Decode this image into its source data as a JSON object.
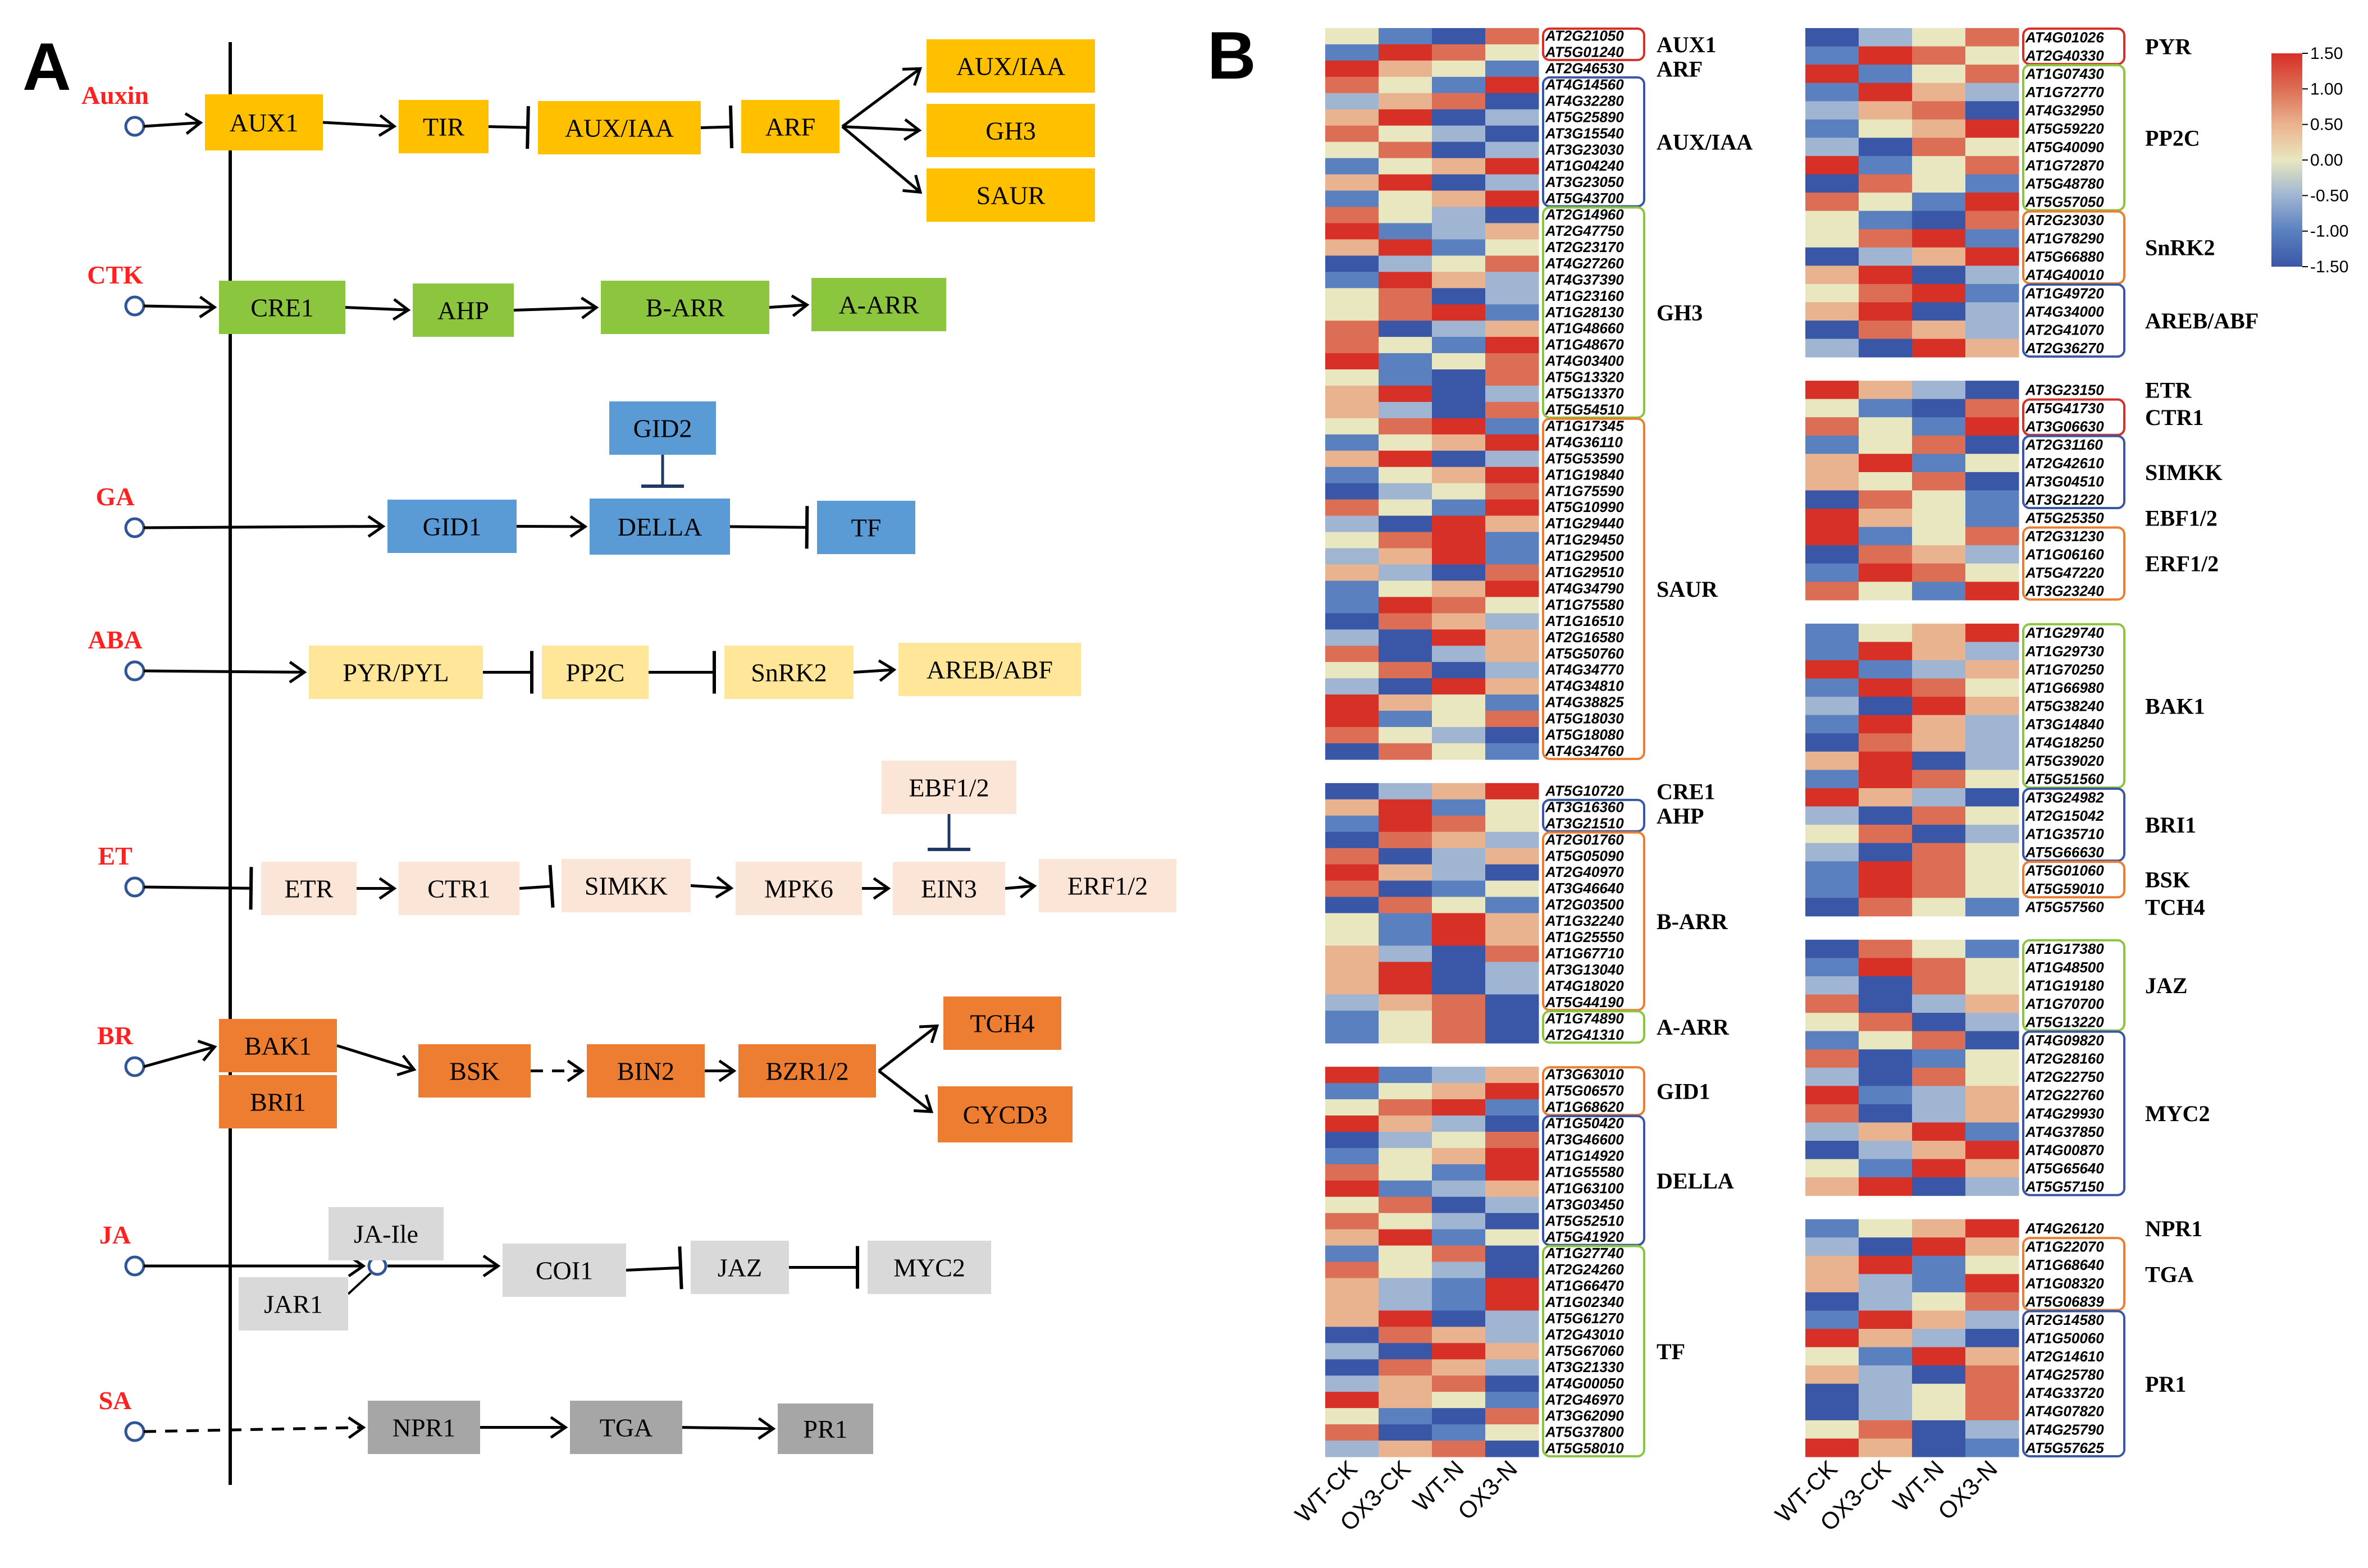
{
  "panel_a": {
    "label": "A",
    "pathways": [
      {
        "id": "auxin",
        "signal": "Auxin",
        "color": "#FFC000",
        "nodes": [
          {
            "id": "AUX1",
            "label": "AUX1"
          },
          {
            "id": "TIR",
            "label": "TIR"
          },
          {
            "id": "AUXIAA1",
            "label": "AUX/IAA"
          },
          {
            "id": "ARF",
            "label": "ARF"
          },
          {
            "id": "AUXIAA2",
            "label": "AUX/IAA"
          },
          {
            "id": "GH3",
            "label": "GH3"
          },
          {
            "id": "SAUR",
            "label": "SAUR"
          }
        ],
        "links": [
          {
            "from": "signal",
            "to": "AUX1",
            "type": "arrow"
          },
          {
            "from": "AUX1",
            "to": "TIR",
            "type": "arrow"
          },
          {
            "from": "TIR",
            "to": "AUXIAA1",
            "type": "inhibit"
          },
          {
            "from": "AUXIAA1",
            "to": "ARF",
            "type": "inhibit"
          },
          {
            "from": "ARF",
            "to": "AUXIAA2",
            "type": "arrow"
          },
          {
            "from": "ARF",
            "to": "GH3",
            "type": "arrow"
          },
          {
            "from": "ARF",
            "to": "SAUR",
            "type": "arrow"
          }
        ]
      },
      {
        "id": "ctk",
        "signal": "CTK",
        "color": "#8CC63F",
        "nodes": [
          {
            "id": "CRE1",
            "label": "CRE1"
          },
          {
            "id": "AHP",
            "label": "AHP"
          },
          {
            "id": "BARR",
            "label": "B-ARR"
          },
          {
            "id": "AARR",
            "label": "A-ARR"
          }
        ],
        "links": [
          {
            "from": "signal",
            "to": "CRE1",
            "type": "arrow"
          },
          {
            "from": "CRE1",
            "to": "AHP",
            "type": "arrow"
          },
          {
            "from": "AHP",
            "to": "BARR",
            "type": "arrow"
          },
          {
            "from": "BARR",
            "to": "AARR",
            "type": "arrow"
          }
        ]
      },
      {
        "id": "ga",
        "signal": "GA",
        "color": "#5B9BD5",
        "nodes": [
          {
            "id": "GID2",
            "label": "GID2"
          },
          {
            "id": "GID1",
            "label": "GID1"
          },
          {
            "id": "DELLA",
            "label": "DELLA"
          },
          {
            "id": "TF",
            "label": "TF"
          }
        ],
        "links": [
          {
            "from": "signal",
            "to": "GID1",
            "type": "arrow"
          },
          {
            "from": "GID1",
            "to": "DELLA",
            "type": "arrow"
          },
          {
            "from": "GID2",
            "to": "DELLA",
            "type": "inhibit"
          },
          {
            "from": "DELLA",
            "to": "TF",
            "type": "inhibit"
          }
        ]
      },
      {
        "id": "aba",
        "signal": "ABA",
        "color": "#FFE699",
        "nodes": [
          {
            "id": "PYR",
            "label": "PYR/PYL"
          },
          {
            "id": "PP2C",
            "label": "PP2C"
          },
          {
            "id": "SnRK2",
            "label": "SnRK2"
          },
          {
            "id": "AREB",
            "label": "AREB/ABF"
          }
        ],
        "links": [
          {
            "from": "signal",
            "to": "PYR",
            "type": "arrow"
          },
          {
            "from": "PYR",
            "to": "PP2C",
            "type": "inhibit"
          },
          {
            "from": "PP2C",
            "to": "SnRK2",
            "type": "inhibit"
          },
          {
            "from": "SnRK2",
            "to": "AREB",
            "type": "arrow"
          }
        ]
      },
      {
        "id": "et",
        "signal": "ET",
        "color": "#FBE5D6",
        "nodes": [
          {
            "id": "ETR",
            "label": "ETR"
          },
          {
            "id": "CTR1",
            "label": "CTR1"
          },
          {
            "id": "SIMKK",
            "label": "SIMKK"
          },
          {
            "id": "MPK6",
            "label": "MPK6"
          },
          {
            "id": "EIN3",
            "label": "EIN3"
          },
          {
            "id": "EBF",
            "label": "EBF1/2"
          },
          {
            "id": "ERF",
            "label": "ERF1/2"
          }
        ],
        "links": [
          {
            "from": "signal",
            "to": "ETR",
            "type": "inhibit"
          },
          {
            "from": "ETR",
            "to": "CTR1",
            "type": "arrow"
          },
          {
            "from": "CTR1",
            "to": "SIMKK",
            "type": "inhibit"
          },
          {
            "from": "SIMKK",
            "to": "MPK6",
            "type": "arrow"
          },
          {
            "from": "MPK6",
            "to": "EIN3",
            "type": "arrow"
          },
          {
            "from": "EBF",
            "to": "EIN3",
            "type": "inhibit"
          },
          {
            "from": "EIN3",
            "to": "ERF",
            "type": "arrow"
          }
        ]
      },
      {
        "id": "br",
        "signal": "BR",
        "color": "#ED7D31",
        "nodes": [
          {
            "id": "BAK1",
            "label": "BAK1"
          },
          {
            "id": "BRI1",
            "label": "BRI1"
          },
          {
            "id": "BSK",
            "label": "BSK"
          },
          {
            "id": "BIN2",
            "label": "BIN2"
          },
          {
            "id": "BZR",
            "label": "BZR1/2"
          },
          {
            "id": "TCH4",
            "label": "TCH4"
          },
          {
            "id": "CYCD3",
            "label": "CYCD3"
          }
        ],
        "links": [
          {
            "from": "signal",
            "to": "BAK1",
            "type": "arrow"
          },
          {
            "from": "BAK1",
            "to": "BSK",
            "type": "arrow"
          },
          {
            "from": "BSK",
            "to": "BIN2",
            "type": "dashed"
          },
          {
            "from": "BIN2",
            "to": "BZR",
            "type": "arrow"
          },
          {
            "from": "BZR",
            "to": "TCH4",
            "type": "arrow"
          },
          {
            "from": "BZR",
            "to": "CYCD3",
            "type": "arrow"
          }
        ]
      },
      {
        "id": "ja",
        "signal": "JA",
        "color": "#D9D9D9",
        "nodes": [
          {
            "id": "JAIle",
            "label": "JA-Ile"
          },
          {
            "id": "JAR1",
            "label": "JAR1"
          },
          {
            "id": "COI1",
            "label": "COI1"
          },
          {
            "id": "JAZ",
            "label": "JAZ"
          },
          {
            "id": "MYC2",
            "label": "MYC2"
          }
        ],
        "links": [
          {
            "from": "signal",
            "to": "JAIle",
            "type": "arrow"
          },
          {
            "from": "JAIle",
            "to": "COI1",
            "type": "arrow"
          },
          {
            "from": "COI1",
            "to": "JAZ",
            "type": "inhibit"
          },
          {
            "from": "JAZ",
            "to": "MYC2",
            "type": "inhibit"
          }
        ]
      },
      {
        "id": "sa",
        "signal": "SA",
        "color": "#A6A6A6",
        "nodes": [
          {
            "id": "NPR1",
            "label": "NPR1"
          },
          {
            "id": "TGA",
            "label": "TGA"
          },
          {
            "id": "PR1",
            "label": "PR1"
          }
        ],
        "links": [
          {
            "from": "signal",
            "to": "NPR1",
            "type": "dashed"
          },
          {
            "from": "NPR1",
            "to": "TGA",
            "type": "arrow"
          },
          {
            "from": "TGA",
            "to": "PR1",
            "type": "arrow"
          }
        ]
      }
    ]
  },
  "panel_b": {
    "label": "B",
    "columns": [
      "WT-CK",
      "OX3-CK",
      "WT-N",
      "OX3-N"
    ],
    "colorbar": {
      "min": -1.5,
      "max": 1.5,
      "tick_labels": [
        "1.50",
        "1.00",
        "0.50",
        "0.00",
        "-0.50",
        "-1.00",
        "-1.50"
      ],
      "stops": [
        "#3A57A7",
        "#5A80BF",
        "#9FB5D2",
        "#E8E7BF",
        "#EAB38F",
        "#DC6E55",
        "#D73027"
      ]
    },
    "heatmaps": [
      {
        "id": "left",
        "groups": [
          {
            "label": "AUX1",
            "box": "#D73027",
            "genes": [
              "AT2G21050",
              "AT5G01240"
            ]
          },
          {
            "label": "ARF",
            "box": null,
            "genes": [
              "AT2G46530"
            ]
          },
          {
            "label": "AUX/IAA",
            "box": "#3A57A7",
            "genes": [
              "AT4G14560",
              "AT4G32280",
              "AT5G25890",
              "AT3G15540",
              "AT3G23030",
              "AT1G04240",
              "AT3G23050",
              "AT5G43700"
            ]
          },
          {
            "label": "GH3",
            "box": "#8CC63F",
            "genes": [
              "AT2G14960",
              "AT2G47750",
              "AT2G23170",
              "AT4G27260",
              "AT4G37390",
              "AT1G23160",
              "AT1G28130",
              "AT1G48660",
              "AT1G48670",
              "AT4G03400",
              "AT5G13320",
              "AT5G13370",
              "AT5G54510"
            ]
          },
          {
            "label": "SAUR",
            "box": "#ED7D31",
            "genes": [
              "AT1G17345",
              "AT4G36110",
              "AT5G53590",
              "AT1G19840",
              "AT1G75590",
              "AT5G10990",
              "AT1G29440",
              "AT1G29450",
              "AT1G29500",
              "AT1G29510",
              "AT4G34790",
              "AT1G75580",
              "AT1G16510",
              "AT2G16580",
              "AT5G50760",
              "AT4G34770",
              "AT4G34810",
              "AT4G38825",
              "AT5G18030",
              "AT5G18080",
              "AT4G34760"
            ]
          },
          {
            "label": "CRE1",
            "box": null,
            "gap": true,
            "genes": [
              "AT5G10720"
            ]
          },
          {
            "label": "AHP",
            "box": "#3A57A7",
            "genes": [
              "AT3G16360",
              "AT3G21510"
            ]
          },
          {
            "label": "B-ARR",
            "box": "#ED7D31",
            "genes": [
              "AT2G01760",
              "AT5G05090",
              "AT2G40970",
              "AT3G46640",
              "AT2G03500",
              "AT1G32240",
              "AT1G25550",
              "AT1G67710",
              "AT3G13040",
              "AT4G18020",
              "AT5G44190"
            ]
          },
          {
            "label": "A-ARR",
            "box": "#8CC63F",
            "genes": [
              "AT1G74890",
              "AT2G41310"
            ]
          },
          {
            "label": "GID1",
            "box": "#ED7D31",
            "gap": true,
            "genes": [
              "AT3G63010",
              "AT5G06570",
              "AT1G68620"
            ]
          },
          {
            "label": "DELLA",
            "box": "#3A57A7",
            "genes": [
              "AT1G50420",
              "AT3G46600",
              "AT1G14920",
              "AT1G55580",
              "AT1G63100",
              "AT3G03450",
              "AT5G52510",
              "AT5G41920"
            ]
          },
          {
            "label": "TF",
            "box": "#8CC63F",
            "genes": [
              "AT1G27740",
              "AT2G24260",
              "AT1G66470",
              "AT1G02340",
              "AT5G61270",
              "AT2G43010",
              "AT5G67060",
              "AT3G21330",
              "AT4G00050",
              "AT2G46970",
              "AT3G62090",
              "AT5G37800",
              "AT5G58010"
            ]
          }
        ]
      },
      {
        "id": "right",
        "groups": [
          {
            "label": "PYR",
            "box": "#D73027",
            "genes": [
              "AT4G01026",
              "AT2G40330"
            ]
          },
          {
            "label": "PP2C",
            "box": "#8CC63F",
            "genes": [
              "AT1G07430",
              "AT1G72770",
              "AT4G32950",
              "AT5G59220",
              "AT5G40090",
              "AT1G72870",
              "AT5G48780",
              "AT5G57050"
            ]
          },
          {
            "label": "SnRK2",
            "box": "#ED7D31",
            "genes": [
              "AT2G23030",
              "AT1G78290",
              "AT5G66880",
              "AT4G40010"
            ]
          },
          {
            "label": "AREB/ABF",
            "box": "#3A57A7",
            "genes": [
              "AT1G49720",
              "AT4G34000",
              "AT2G41070",
              "AT2G36270"
            ]
          },
          {
            "label": "ETR",
            "box": null,
            "gap": true,
            "genes": [
              "AT3G23150"
            ]
          },
          {
            "label": "CTR1",
            "box": "#D73027",
            "genes": [
              "AT5G41730",
              "AT3G06630"
            ]
          },
          {
            "label": "SIMKK",
            "box": "#3A57A7",
            "genes": [
              "AT2G31160",
              "AT2G42610",
              "AT3G04510",
              "AT3G21220"
            ]
          },
          {
            "label": "EBF1/2",
            "box": null,
            "genes": [
              "AT5G25350"
            ]
          },
          {
            "label": "ERF1/2",
            "box": "#ED7D31",
            "genes": [
              "AT2G31230",
              "AT1G06160",
              "AT5G47220",
              "AT3G23240"
            ]
          },
          {
            "label": "BAK1",
            "box": "#8CC63F",
            "gap": true,
            "genes": [
              "AT1G29740",
              "AT1G29730",
              "AT1G70250",
              "AT1G66980",
              "AT5G38240",
              "AT3G14840",
              "AT4G18250",
              "AT5G39020",
              "AT5G51560"
            ]
          },
          {
            "label": "BRI1",
            "box": "#3A57A7",
            "genes": [
              "AT3G24982",
              "AT2G15042",
              "AT1G35710",
              "AT5G66630"
            ]
          },
          {
            "label": "BSK",
            "box": "#ED7D31",
            "genes": [
              "AT5G01060",
              "AT5G59010"
            ]
          },
          {
            "label": "TCH4",
            "box": null,
            "genes": [
              "AT5G57560"
            ]
          },
          {
            "label": "JAZ",
            "box": "#8CC63F",
            "gap": true,
            "genes": [
              "AT1G17380",
              "AT1G48500",
              "AT1G19180",
              "AT1G70700",
              "AT5G13220"
            ]
          },
          {
            "label": "MYC2",
            "box": "#3A57A7",
            "genes": [
              "AT4G09820",
              "AT2G28160",
              "AT2G22750",
              "AT2G22760",
              "AT4G29930",
              "AT4G37850",
              "AT4G00870",
              "AT5G65640",
              "AT5G57150"
            ]
          },
          {
            "label": "NPR1",
            "box": null,
            "gap": true,
            "genes": [
              "AT4G26120"
            ]
          },
          {
            "label": "TGA",
            "box": "#ED7D31",
            "genes": [
              "AT1G22070",
              "AT1G68640",
              "AT1G08320",
              "AT5G06839"
            ]
          },
          {
            "label": "PR1",
            "box": "#3A57A7",
            "genes": [
              "AT2G14580",
              "AT1G50060",
              "AT2G14610",
              "AT4G25780",
              "AT4G33720",
              "AT4G07820",
              "AT4G25790",
              "AT5G57625"
            ]
          }
        ]
      }
    ]
  }
}
